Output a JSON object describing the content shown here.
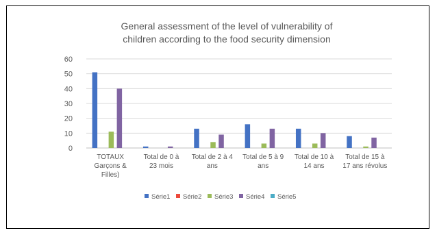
{
  "chart_data": {
    "type": "bar",
    "title": "General assessment of the level of vulnerability of children according to the food security dimension",
    "title_lines": [
      "General assessment of the level of vulnerability of",
      "children according to the food security dimension"
    ],
    "categories": [
      "TOTAUX Garçons & Filles)",
      "Total de 0 à 23 mois",
      "Total de 2 à 4 ans",
      "Total de 5 à 9 ans",
      "Total de 10 à 14 ans",
      "Total de 15 à 17 ans révolus"
    ],
    "category_lines": [
      [
        "TOTAUX",
        "Garçons &",
        "Filles)"
      ],
      [
        "Total de 0 à",
        "23 mois"
      ],
      [
        "Total de 2 à 4",
        "ans"
      ],
      [
        "Total de 5 à 9",
        "ans"
      ],
      [
        "Total de 10 à",
        "14 ans"
      ],
      [
        "Total de 15 à",
        "17 ans révolus"
      ]
    ],
    "series": [
      {
        "name": "Série1",
        "color": "#4472C4",
        "values": [
          51,
          1,
          13,
          16,
          13,
          8
        ]
      },
      {
        "name": "Série2",
        "color": "#ED4A3C",
        "values": [
          0,
          0,
          0,
          0,
          0,
          0
        ]
      },
      {
        "name": "Série3",
        "color": "#9BBB59",
        "values": [
          11,
          0,
          4,
          3,
          3,
          1
        ]
      },
      {
        "name": "Série4",
        "color": "#8064A2",
        "values": [
          40,
          1,
          9,
          13,
          10,
          7
        ]
      },
      {
        "name": "Série5",
        "color": "#4BACC6",
        "values": [
          0,
          0,
          0,
          0,
          0,
          0
        ]
      }
    ],
    "ylim": [
      0,
      60
    ],
    "yticks": [
      "0",
      "10",
      "20",
      "30",
      "40",
      "50",
      "60"
    ],
    "grid": true,
    "legend_position": "bottom",
    "xlabel": "",
    "ylabel": ""
  }
}
